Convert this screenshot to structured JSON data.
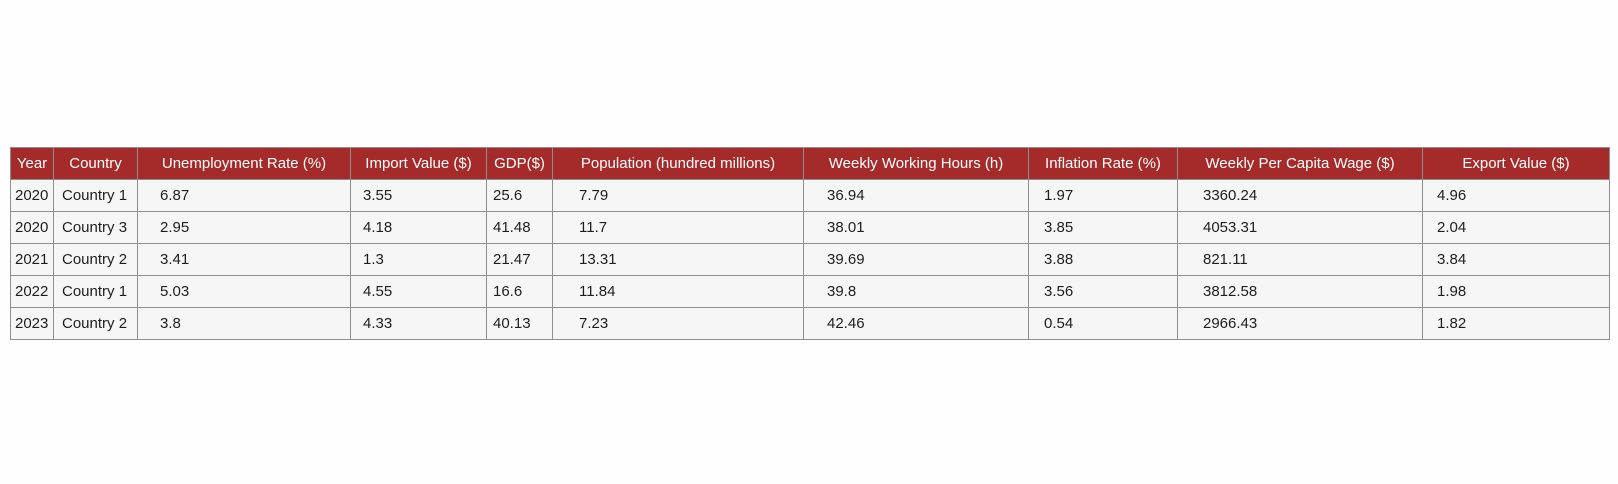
{
  "chart_data": {
    "type": "table",
    "columns": [
      "Year",
      "Country",
      "Unemployment Rate (%)",
      "Import Value ($)",
      "GDP($)",
      "Population (hundred millions)",
      "Weekly Working Hours (h)",
      "Inflation Rate (%)",
      "Weekly Per Capita Wage ($)",
      "Export Value ($)"
    ],
    "rows": [
      [
        "2020",
        "Country 1",
        "6.87",
        "3.55",
        "25.6",
        "7.79",
        "36.94",
        "1.97",
        "3360.24",
        "4.96"
      ],
      [
        "2020",
        "Country 3",
        "2.95",
        "4.18",
        "41.48",
        "11.7",
        "38.01",
        "3.85",
        "4053.31",
        "2.04"
      ],
      [
        "2021",
        "Country 2",
        "3.41",
        "1.3",
        "21.47",
        "13.31",
        "39.69",
        "3.88",
        "821.11",
        "3.84"
      ],
      [
        "2022",
        "Country 1",
        "5.03",
        "4.55",
        "16.6",
        "11.84",
        "39.8",
        "3.56",
        "3812.58",
        "1.98"
      ],
      [
        "2023",
        "Country 2",
        "3.8",
        "4.33",
        "40.13",
        "7.23",
        "42.46",
        "0.54",
        "2966.43",
        "1.82"
      ]
    ],
    "header_color": "#a52a2a",
    "cell_color": "#f6f6f6",
    "border_color": "#8e8e8e"
  }
}
